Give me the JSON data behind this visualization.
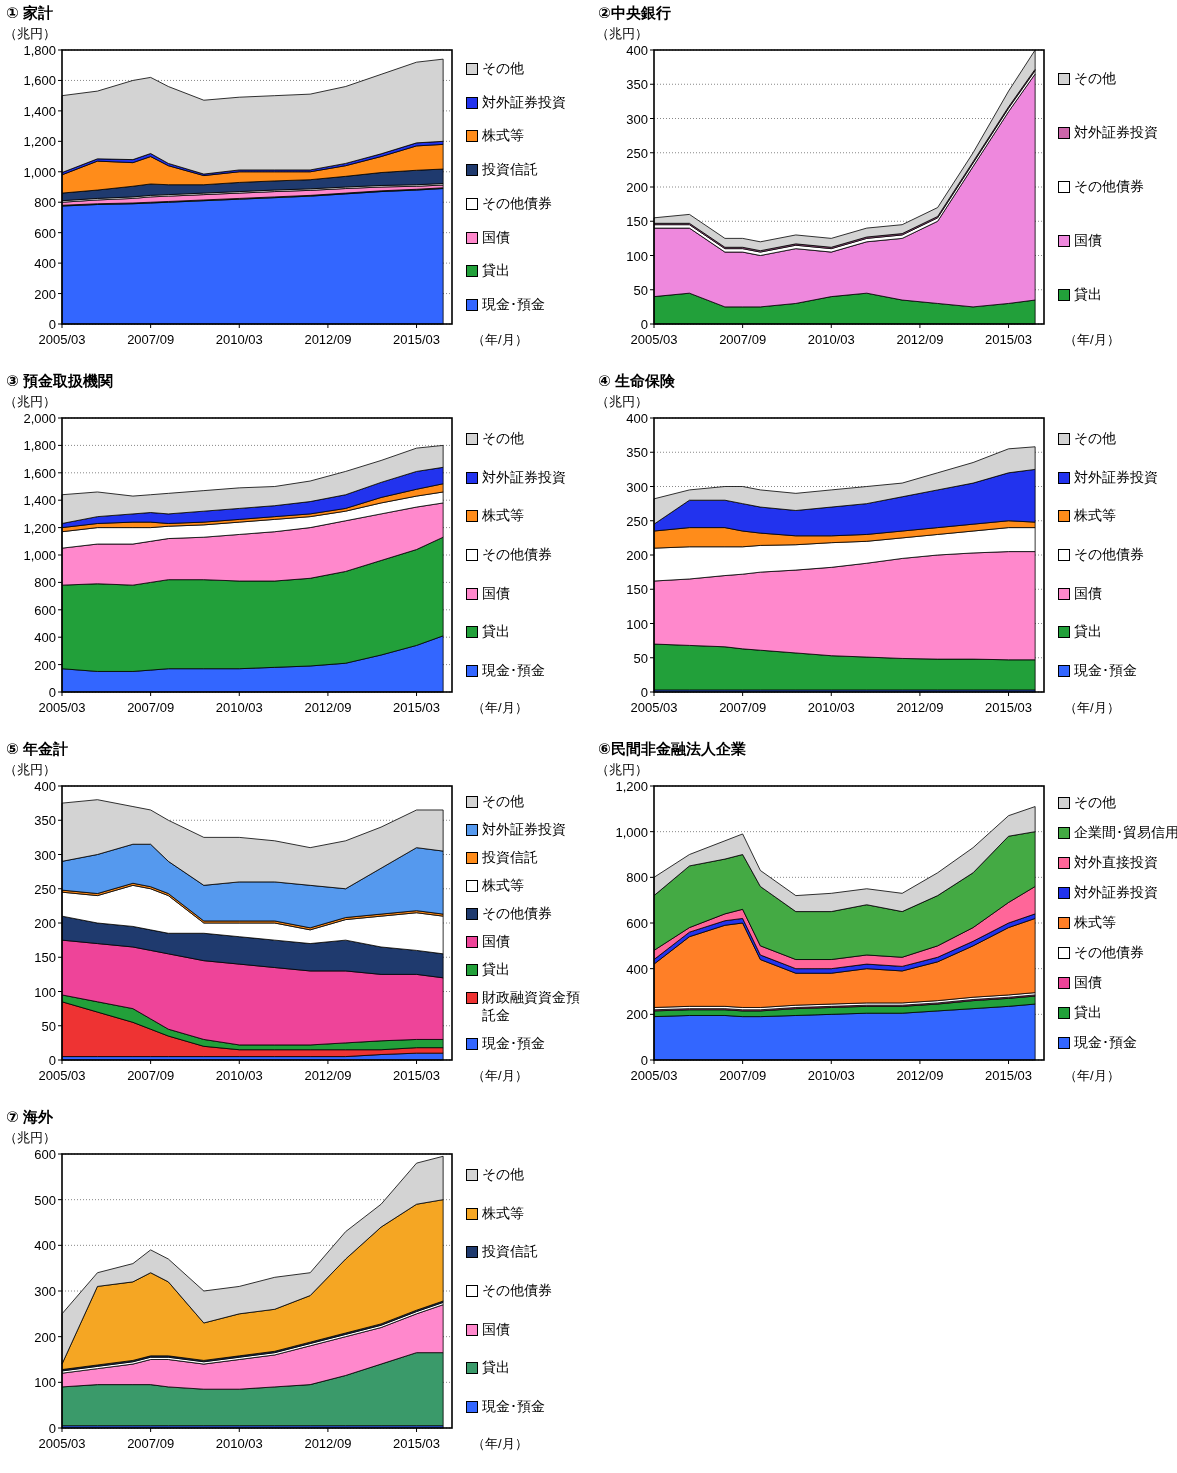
{
  "chart_data": [
    {
      "type": "area",
      "stacked": true,
      "title": "① 家計",
      "ylabel": "（兆円）",
      "xlabel": "（年/月）",
      "legend": "right",
      "grid": "y",
      "x": [
        "2005-03",
        "2006-03",
        "2007-03",
        "2007-09",
        "2008-03",
        "2009-03",
        "2010-03",
        "2011-03",
        "2012-03",
        "2013-03",
        "2014-03",
        "2015-03",
        "2015-12"
      ],
      "xlim": [
        "2005-03",
        "2016-03"
      ],
      "xticks": [
        {
          "value": "2005-03",
          "label": "2005/03"
        },
        {
          "value": "2007-09",
          "label": "2007/09"
        },
        {
          "value": "2010-03",
          "label": "2010/03"
        },
        {
          "value": "2012-09",
          "label": "2012/09"
        },
        {
          "value": "2015-03",
          "label": "2015/03"
        }
      ],
      "ylim": [
        0,
        1800
      ],
      "yticks": [
        0,
        200,
        400,
        600,
        800,
        {
          "value": 1000,
          "label": "1,000"
        },
        {
          "value": 1200,
          "label": "1,200"
        },
        {
          "value": 1400,
          "label": "1,400"
        },
        {
          "value": 1600,
          "label": "1,600"
        },
        {
          "value": 1800,
          "label": "1,800"
        }
      ],
      "series": [
        {
          "name": "現金･預金",
          "color": "#3366ff",
          "values": [
            775,
            785,
            790,
            795,
            800,
            810,
            820,
            830,
            840,
            855,
            870,
            880,
            890
          ]
        },
        {
          "name": "貸出",
          "color": "#22a03a",
          "values": [
            5,
            5,
            5,
            5,
            5,
            5,
            5,
            5,
            5,
            5,
            5,
            5,
            5
          ]
        },
        {
          "name": "国債",
          "color": "#ff88cc",
          "values": [
            20,
            25,
            30,
            35,
            35,
            35,
            35,
            35,
            33,
            30,
            25,
            20,
            18
          ]
        },
        {
          "name": "その他債券",
          "color": "#ffffff",
          "values": [
            10,
            10,
            10,
            10,
            10,
            10,
            10,
            10,
            10,
            10,
            10,
            10,
            10
          ]
        },
        {
          "name": "投資信託",
          "color": "#1f3a6e",
          "values": [
            50,
            55,
            70,
            75,
            65,
            55,
            60,
            60,
            60,
            70,
            85,
            95,
            95
          ]
        },
        {
          "name": "株式等",
          "color": "#ff8c1a",
          "values": [
            120,
            190,
            155,
            180,
            125,
            60,
            70,
            60,
            52,
            70,
            105,
            160,
            162
          ]
        },
        {
          "name": "対外証券投資",
          "color": "#2233ee",
          "values": [
            15,
            15,
            20,
            20,
            15,
            10,
            12,
            12,
            12,
            15,
            18,
            20,
            20
          ]
        },
        {
          "name": "その他",
          "color": "#d3d3d3",
          "values": [
            505,
            445,
            520,
            500,
            505,
            485,
            478,
            488,
            498,
            505,
            522,
            530,
            540
          ]
        }
      ]
    },
    {
      "type": "area",
      "stacked": true,
      "title": "②中央銀行",
      "ylabel": "（兆円）",
      "xlabel": "（年/月）",
      "legend": "right",
      "grid": "y",
      "x": [
        "2005-03",
        "2006-03",
        "2007-03",
        "2007-09",
        "2008-03",
        "2009-03",
        "2010-03",
        "2011-03",
        "2012-03",
        "2013-03",
        "2014-03",
        "2015-03",
        "2015-12"
      ],
      "xlim": [
        "2005-03",
        "2016-03"
      ],
      "xticks": [
        {
          "value": "2005-03",
          "label": "2005/03"
        },
        {
          "value": "2007-09",
          "label": "2007/09"
        },
        {
          "value": "2010-03",
          "label": "2010/03"
        },
        {
          "value": "2012-09",
          "label": "2012/09"
        },
        {
          "value": "2015-03",
          "label": "2015/03"
        }
      ],
      "ylim": [
        0,
        400
      ],
      "yticks": [
        0,
        50,
        100,
        150,
        200,
        250,
        300,
        350,
        400
      ],
      "series": [
        {
          "name": "貸出",
          "color": "#22a03a",
          "values": [
            40,
            45,
            25,
            25,
            25,
            30,
            40,
            45,
            35,
            30,
            25,
            30,
            35
          ]
        },
        {
          "name": "国債",
          "color": "#ee88dd",
          "values": [
            100,
            95,
            80,
            80,
            75,
            80,
            65,
            75,
            90,
            120,
            205,
            280,
            330
          ]
        },
        {
          "name": "その他債券",
          "color": "#ffffff",
          "values": [
            5,
            5,
            5,
            5,
            5,
            5,
            5,
            5,
            5,
            5,
            5,
            5,
            5
          ]
        },
        {
          "name": "対外証券投資",
          "color": "#cc66aa",
          "values": [
            2,
            2,
            2,
            2,
            2,
            2,
            2,
            2,
            2,
            2,
            2,
            2,
            2
          ]
        },
        {
          "name": "その他",
          "color": "#d3d3d3",
          "values": [
            8,
            13,
            13,
            13,
            13,
            13,
            13,
            13,
            13,
            13,
            13,
            23,
            28
          ]
        }
      ]
    },
    {
      "type": "area",
      "stacked": true,
      "title": "③ 預金取扱機関",
      "ylabel": "（兆円）",
      "xlabel": "（年/月）",
      "legend": "right",
      "grid": "y",
      "x": [
        "2005-03",
        "2006-03",
        "2007-03",
        "2007-09",
        "2008-03",
        "2009-03",
        "2010-03",
        "2011-03",
        "2012-03",
        "2013-03",
        "2014-03",
        "2015-03",
        "2015-12"
      ],
      "xlim": [
        "2005-03",
        "2016-03"
      ],
      "xticks": [
        {
          "value": "2005-03",
          "label": "2005/03"
        },
        {
          "value": "2007-09",
          "label": "2007/09"
        },
        {
          "value": "2010-03",
          "label": "2010/03"
        },
        {
          "value": "2012-09",
          "label": "2012/09"
        },
        {
          "value": "2015-03",
          "label": "2015/03"
        }
      ],
      "ylim": [
        0,
        2000
      ],
      "yticks": [
        0,
        200,
        400,
        600,
        800,
        {
          "value": 1000,
          "label": "1,000"
        },
        {
          "value": 1200,
          "label": "1,200"
        },
        {
          "value": 1400,
          "label": "1,400"
        },
        {
          "value": 1600,
          "label": "1,600"
        },
        {
          "value": 1800,
          "label": "1,800"
        },
        {
          "value": 2000,
          "label": "2,000"
        }
      ],
      "series": [
        {
          "name": "現金･預金",
          "color": "#3366ff",
          "values": [
            170,
            150,
            150,
            160,
            170,
            170,
            170,
            180,
            190,
            210,
            270,
            340,
            410
          ]
        },
        {
          "name": "貸出",
          "color": "#22a03a",
          "values": [
            610,
            640,
            630,
            640,
            650,
            650,
            640,
            630,
            640,
            670,
            690,
            700,
            720
          ]
        },
        {
          "name": "国債",
          "color": "#ff88cc",
          "values": [
            270,
            290,
            300,
            300,
            300,
            310,
            340,
            360,
            370,
            370,
            340,
            310,
            250
          ]
        },
        {
          "name": "その他債券",
          "color": "#ffffff",
          "values": [
            120,
            120,
            120,
            100,
            90,
            90,
            90,
            90,
            80,
            70,
            80,
            80,
            80
          ]
        },
        {
          "name": "株式等",
          "color": "#ff8c1a",
          "values": [
            30,
            30,
            40,
            40,
            20,
            20,
            20,
            20,
            20,
            20,
            40,
            50,
            60
          ]
        },
        {
          "name": "対外証券投資",
          "color": "#2233ee",
          "values": [
            30,
            50,
            60,
            70,
            70,
            80,
            80,
            80,
            90,
            100,
            110,
            130,
            120
          ]
        },
        {
          "name": "その他",
          "color": "#d3d3d3",
          "values": [
            210,
            180,
            130,
            130,
            150,
            150,
            150,
            140,
            150,
            170,
            160,
            170,
            160
          ]
        }
      ]
    },
    {
      "type": "area",
      "stacked": true,
      "title": "④ 生命保険",
      "ylabel": "（兆円）",
      "xlabel": "（年/月）",
      "legend": "right",
      "grid": "y",
      "x": [
        "2005-03",
        "2006-03",
        "2007-03",
        "2007-09",
        "2008-03",
        "2009-03",
        "2010-03",
        "2011-03",
        "2012-03",
        "2013-03",
        "2014-03",
        "2015-03",
        "2015-12"
      ],
      "xlim": [
        "2005-03",
        "2016-03"
      ],
      "xticks": [
        {
          "value": "2005-03",
          "label": "2005/03"
        },
        {
          "value": "2007-09",
          "label": "2007/09"
        },
        {
          "value": "2010-03",
          "label": "2010/03"
        },
        {
          "value": "2012-09",
          "label": "2012/09"
        },
        {
          "value": "2015-03",
          "label": "2015/03"
        }
      ],
      "ylim": [
        0,
        400
      ],
      "yticks": [
        0,
        50,
        100,
        150,
        200,
        250,
        300,
        350,
        400
      ],
      "series": [
        {
          "name": "現金･預金",
          "color": "#3366ff",
          "values": [
            3,
            3,
            3,
            3,
            3,
            3,
            3,
            3,
            3,
            3,
            3,
            3,
            3
          ]
        },
        {
          "name": "貸出",
          "color": "#22a03a",
          "values": [
            67,
            65,
            63,
            60,
            58,
            54,
            50,
            48,
            46,
            45,
            45,
            44,
            44
          ]
        },
        {
          "name": "国債",
          "color": "#ff88cc",
          "values": [
            92,
            97,
            104,
            109,
            114,
            121,
            129,
            137,
            146,
            152,
            155,
            158,
            158
          ]
        },
        {
          "name": "その他債券",
          "color": "#ffffff",
          "values": [
            48,
            47,
            42,
            40,
            39,
            37,
            36,
            32,
            30,
            30,
            32,
            35,
            35
          ]
        },
        {
          "name": "株式等",
          "color": "#ff8c1a",
          "values": [
            25,
            28,
            28,
            23,
            18,
            13,
            10,
            10,
            10,
            10,
            10,
            10,
            8
          ]
        },
        {
          "name": "対外証券投資",
          "color": "#2233ee",
          "values": [
            10,
            40,
            40,
            40,
            38,
            37,
            42,
            45,
            50,
            55,
            60,
            70,
            77
          ]
        },
        {
          "name": "その他",
          "color": "#d3d3d3",
          "values": [
            37,
            15,
            20,
            25,
            25,
            25,
            25,
            25,
            20,
            25,
            30,
            35,
            33
          ]
        }
      ]
    },
    {
      "type": "area",
      "stacked": true,
      "title": "⑤ 年金計",
      "ylabel": "（兆円）",
      "xlabel": "（年/月）",
      "legend": "right",
      "grid": "y",
      "x": [
        "2005-03",
        "2006-03",
        "2007-03",
        "2007-09",
        "2008-03",
        "2009-03",
        "2010-03",
        "2011-03",
        "2012-03",
        "2013-03",
        "2014-03",
        "2015-03",
        "2015-12"
      ],
      "xlim": [
        "2005-03",
        "2016-03"
      ],
      "xticks": [
        {
          "value": "2005-03",
          "label": "2005/03"
        },
        {
          "value": "2007-09",
          "label": "2007/09"
        },
        {
          "value": "2010-03",
          "label": "2010/03"
        },
        {
          "value": "2012-09",
          "label": "2012/09"
        },
        {
          "value": "2015-03",
          "label": "2015/03"
        }
      ],
      "ylim": [
        0,
        400
      ],
      "yticks": [
        0,
        50,
        100,
        150,
        200,
        250,
        300,
        350,
        400
      ],
      "series": [
        {
          "name": "現金･預金",
          "color": "#3366ff",
          "values": [
            5,
            5,
            5,
            5,
            5,
            5,
            5,
            5,
            5,
            5,
            8,
            10,
            10
          ]
        },
        {
          "name": "財政融資資金預託金",
          "color": "#ee3333",
          "values": [
            80,
            65,
            50,
            40,
            30,
            15,
            10,
            10,
            10,
            10,
            7,
            8,
            8
          ]
        },
        {
          "name": "貸出",
          "color": "#22a03a",
          "values": [
            10,
            15,
            20,
            15,
            10,
            10,
            7,
            7,
            7,
            10,
            13,
            12,
            12
          ]
        },
        {
          "name": "国債",
          "color": "#ee4499",
          "values": [
            80,
            85,
            90,
            100,
            110,
            115,
            118,
            113,
            108,
            105,
            97,
            95,
            90
          ]
        },
        {
          "name": "その他債券",
          "color": "#1f3a6e",
          "values": [
            35,
            30,
            30,
            30,
            30,
            40,
            40,
            40,
            40,
            45,
            40,
            35,
            35
          ]
        },
        {
          "name": "株式等",
          "color": "#ffffff",
          "values": [
            35,
            40,
            60,
            60,
            55,
            15,
            20,
            25,
            20,
            30,
            45,
            55,
            55
          ]
        },
        {
          "name": "投資信託",
          "color": "#ff8c1a",
          "values": [
            3,
            3,
            3,
            3,
            3,
            3,
            3,
            3,
            3,
            3,
            3,
            3,
            3
          ]
        },
        {
          "name": "対外証券投資",
          "color": "#5599ee",
          "values": [
            42,
            57,
            57,
            62,
            47,
            52,
            57,
            57,
            62,
            42,
            67,
            92,
            92
          ]
        },
        {
          "name": "その他",
          "color": "#d3d3d3",
          "values": [
            85,
            80,
            55,
            50,
            60,
            70,
            65,
            60,
            55,
            70,
            60,
            55,
            60
          ]
        }
      ]
    },
    {
      "type": "area",
      "stacked": true,
      "title": "⑥民間非金融法人企業",
      "ylabel": "（兆円）",
      "xlabel": "（年/月）",
      "legend": "right",
      "grid": "y",
      "x": [
        "2005-03",
        "2006-03",
        "2007-03",
        "2007-09",
        "2008-03",
        "2009-03",
        "2010-03",
        "2011-03",
        "2012-03",
        "2013-03",
        "2014-03",
        "2015-03",
        "2015-12"
      ],
      "xlim": [
        "2005-03",
        "2016-03"
      ],
      "xticks": [
        {
          "value": "2005-03",
          "label": "2005/03"
        },
        {
          "value": "2007-09",
          "label": "2007/09"
        },
        {
          "value": "2010-03",
          "label": "2010/03"
        },
        {
          "value": "2012-09",
          "label": "2012/09"
        },
        {
          "value": "2015-03",
          "label": "2015/03"
        }
      ],
      "ylim": [
        0,
        1200
      ],
      "yticks": [
        0,
        200,
        400,
        600,
        800,
        {
          "value": 1000,
          "label": "1,000"
        },
        {
          "value": 1200,
          "label": "1,200"
        }
      ],
      "series": [
        {
          "name": "現金･預金",
          "color": "#3366ff",
          "values": [
            190,
            195,
            195,
            190,
            190,
            195,
            200,
            205,
            205,
            215,
            225,
            235,
            245
          ]
        },
        {
          "name": "貸出",
          "color": "#22a03a",
          "values": [
            25,
            25,
            25,
            25,
            25,
            30,
            30,
            30,
            30,
            30,
            35,
            35,
            35
          ]
        },
        {
          "name": "国債",
          "color": "#ee4499",
          "values": [
            5,
            5,
            5,
            5,
            5,
            5,
            5,
            5,
            5,
            5,
            5,
            5,
            5
          ]
        },
        {
          "name": "その他債券",
          "color": "#ffffff",
          "values": [
            10,
            10,
            10,
            10,
            10,
            10,
            10,
            10,
            10,
            10,
            10,
            10,
            10
          ]
        },
        {
          "name": "株式等",
          "color": "#ff7f27",
          "values": [
            190,
            305,
            355,
            370,
            210,
            140,
            135,
            150,
            140,
            170,
            225,
            295,
            325
          ]
        },
        {
          "name": "対外証券投資",
          "color": "#2233ee",
          "values": [
            20,
            20,
            20,
            20,
            20,
            20,
            20,
            20,
            20,
            20,
            20,
            20,
            20
          ]
        },
        {
          "name": "対外直接投資",
          "color": "#ff6699",
          "values": [
            40,
            20,
            30,
            40,
            40,
            40,
            40,
            40,
            40,
            50,
            60,
            90,
            120
          ]
        },
        {
          "name": "企業間･貿易信用",
          "color": "#44aa44",
          "values": [
            240,
            270,
            240,
            240,
            260,
            210,
            210,
            220,
            200,
            220,
            240,
            290,
            240
          ]
        },
        {
          "name": "その他",
          "color": "#d3d3d3",
          "values": [
            80,
            50,
            80,
            90,
            70,
            70,
            80,
            70,
            80,
            100,
            110,
            90,
            110
          ]
        }
      ]
    },
    {
      "type": "area",
      "stacked": true,
      "title": "⑦ 海外",
      "ylabel": "（兆円）",
      "xlabel": "（年/月）",
      "legend": "right",
      "grid": "y",
      "x": [
        "2005-03",
        "2006-03",
        "2007-03",
        "2007-09",
        "2008-03",
        "2009-03",
        "2010-03",
        "2011-03",
        "2012-03",
        "2013-03",
        "2014-03",
        "2015-03",
        "2015-12"
      ],
      "xlim": [
        "2005-03",
        "2016-03"
      ],
      "xticks": [
        {
          "value": "2005-03",
          "label": "2005/03"
        },
        {
          "value": "2007-09",
          "label": "2007/09"
        },
        {
          "value": "2010-03",
          "label": "2010/03"
        },
        {
          "value": "2012-09",
          "label": "2012/09"
        },
        {
          "value": "2015-03",
          "label": "2015/03"
        }
      ],
      "ylim": [
        0,
        600
      ],
      "yticks": [
        0,
        100,
        200,
        300,
        400,
        500,
        600
      ],
      "series": [
        {
          "name": "現金･預金",
          "color": "#3366ff",
          "values": [
            5,
            5,
            5,
            5,
            5,
            5,
            5,
            5,
            5,
            5,
            5,
            5,
            5
          ]
        },
        {
          "name": "貸出",
          "color": "#3a9a6a",
          "values": [
            85,
            90,
            90,
            90,
            85,
            80,
            80,
            85,
            90,
            110,
            135,
            160,
            160
          ]
        },
        {
          "name": "国債",
          "color": "#ff88cc",
          "values": [
            30,
            35,
            45,
            55,
            60,
            55,
            65,
            70,
            85,
            85,
            80,
            85,
            105
          ]
        },
        {
          "name": "その他債券",
          "color": "#ffffff",
          "values": [
            5,
            5,
            5,
            5,
            5,
            5,
            5,
            5,
            5,
            5,
            5,
            5,
            5
          ]
        },
        {
          "name": "投資信託",
          "color": "#1f3a6e",
          "values": [
            3,
            3,
            3,
            3,
            3,
            3,
            3,
            3,
            3,
            3,
            3,
            3,
            3
          ]
        },
        {
          "name": "株式等",
          "color": "#f5a623",
          "values": [
            12,
            172,
            172,
            182,
            162,
            82,
            92,
            92,
            102,
            162,
            212,
            232,
            222
          ]
        },
        {
          "name": "その他",
          "color": "#d3d3d3",
          "values": [
            110,
            30,
            40,
            50,
            50,
            70,
            60,
            70,
            50,
            60,
            50,
            90,
            95
          ]
        }
      ]
    }
  ]
}
